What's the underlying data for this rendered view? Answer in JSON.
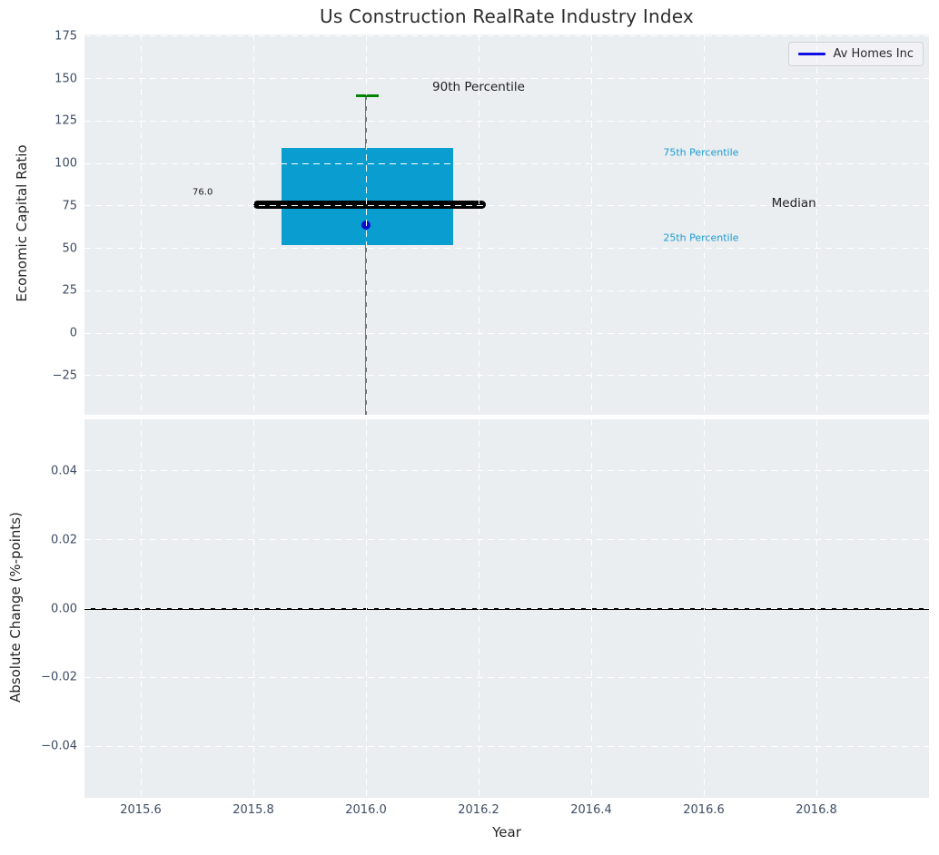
{
  "title": "Us Construction RealRate Industry Index",
  "legend": {
    "label": "Av Homes Inc"
  },
  "colors": {
    "axes_bg": "#eaeef0",
    "grid": "#ffffff",
    "box_fill": "#0a9ed0",
    "median_line": "#000000",
    "whisker": "#6e787c",
    "p90_cap": "#038203",
    "company_dot": "#0d0dcf",
    "legend_line": "#1010e6",
    "tick_label": "#3e4c63",
    "annotation_cyan": "#1a9cd2",
    "zero_line": "#000000"
  },
  "chart_data": [
    {
      "type": "boxplot",
      "title": "Us Construction RealRate Industry Index",
      "xlabel": "",
      "ylabel": "Economic Capital Ratio",
      "xlim": [
        2015.5,
        2017.0
      ],
      "ylim": [
        -48,
        176
      ],
      "xticks": [
        2015.6,
        2015.8,
        2016.0,
        2016.2,
        2016.4,
        2016.6,
        2016.8
      ],
      "yticks": [
        175,
        150,
        125,
        100,
        75,
        50,
        25,
        0,
        -25
      ],
      "grid": true,
      "legend_position": "upper right",
      "box": {
        "x_center": 2016.0,
        "x_left": 2015.85,
        "x_right": 2016.155,
        "q1": 52,
        "median": 76,
        "q3": 109,
        "p90": 140,
        "median_label": "76.0",
        "median_line_x": [
          2015.8,
          2016.213
        ],
        "cap_x": [
          2015.982,
          2016.022
        ],
        "whisker_x": 2016.0,
        "whisker_low_clipped_below_axis": true
      },
      "series": [
        {
          "name": "Av Homes Inc",
          "marker": "dot",
          "points": [
            {
              "x": 2016.0,
              "y": 63.5
            }
          ]
        }
      ],
      "annotations": [
        {
          "text": "90th Percentile",
          "x": 2016.2,
          "y": 145,
          "style": "dark-large"
        },
        {
          "text": "75th Percentile",
          "x": 2016.595,
          "y": 106.5,
          "style": "cyan-small"
        },
        {
          "text": "Median",
          "x": 2016.76,
          "y": 76.5,
          "style": "dark-large"
        },
        {
          "text": "25th Percentile",
          "x": 2016.595,
          "y": 56.5,
          "style": "cyan-small"
        },
        {
          "text": "76.0",
          "x": 2015.71,
          "y": 83,
          "style": "dark-tiny"
        }
      ]
    },
    {
      "type": "line",
      "xlabel": "Year",
      "ylabel": "Absolute Change (%-points)",
      "xlim": [
        2015.5,
        2017.0
      ],
      "ylim": [
        -0.055,
        0.055
      ],
      "xticks": [
        2015.6,
        2015.8,
        2016.0,
        2016.2,
        2016.4,
        2016.6,
        2016.8
      ],
      "yticks": [
        0.04,
        0.02,
        0,
        -0.02,
        -0.04
      ],
      "ytick_decimals": 2,
      "grid": true,
      "zero_line": 0,
      "series": []
    }
  ]
}
